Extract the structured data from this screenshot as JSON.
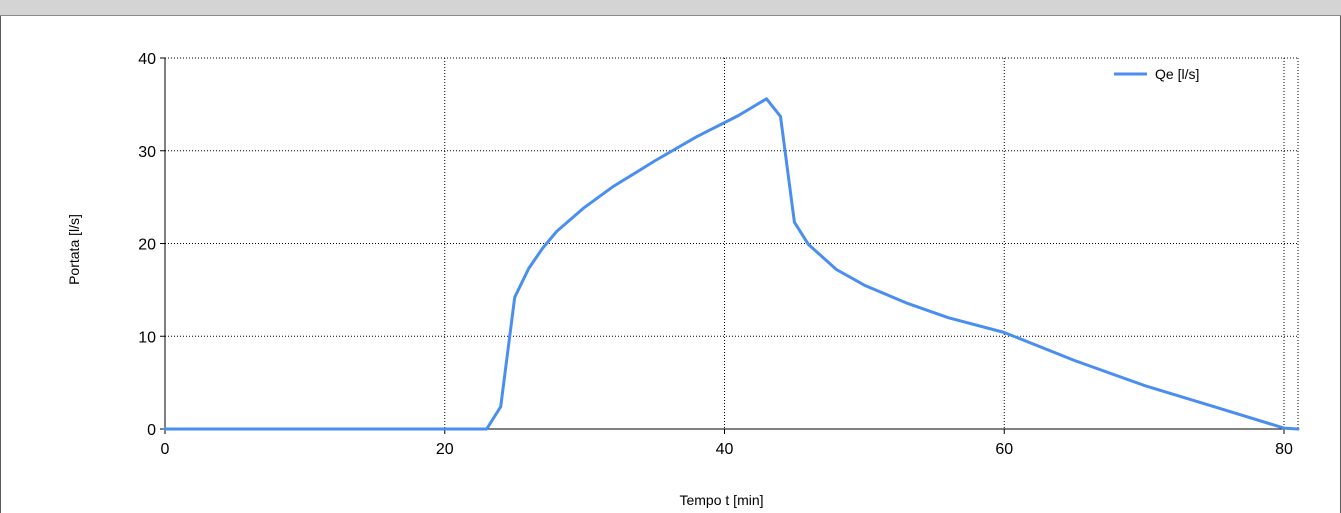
{
  "chart_data": {
    "type": "line",
    "xlabel": "Tempo t [min]",
    "ylabel": "Portata [l/s]",
    "xlim": [
      0,
      81
    ],
    "ylim": [
      0,
      40
    ],
    "x_ticks": [
      0,
      20,
      40,
      60,
      80
    ],
    "y_ticks": [
      0,
      10,
      20,
      30,
      40
    ],
    "grid": true,
    "legend_position": "top-right",
    "series": [
      {
        "name": "Qe [l/s]",
        "color": "#4a8ef0",
        "points": [
          [
            0,
            0
          ],
          [
            23,
            0
          ],
          [
            24,
            2.4
          ],
          [
            25,
            14.2
          ],
          [
            26,
            17.3
          ],
          [
            27,
            19.5
          ],
          [
            28,
            21.3
          ],
          [
            30,
            23.9
          ],
          [
            32,
            26.1
          ],
          [
            35,
            28.9
          ],
          [
            38,
            31.5
          ],
          [
            41,
            33.8
          ],
          [
            43,
            35.6
          ],
          [
            44,
            33.7
          ],
          [
            45,
            22.3
          ],
          [
            46,
            19.9
          ],
          [
            48,
            17.2
          ],
          [
            50,
            15.5
          ],
          [
            53,
            13.6
          ],
          [
            56,
            12.0
          ],
          [
            60,
            10.4
          ],
          [
            65,
            7.4
          ],
          [
            70,
            4.7
          ],
          [
            75,
            2.4
          ],
          [
            80,
            0.1
          ],
          [
            81,
            0
          ]
        ]
      }
    ]
  }
}
